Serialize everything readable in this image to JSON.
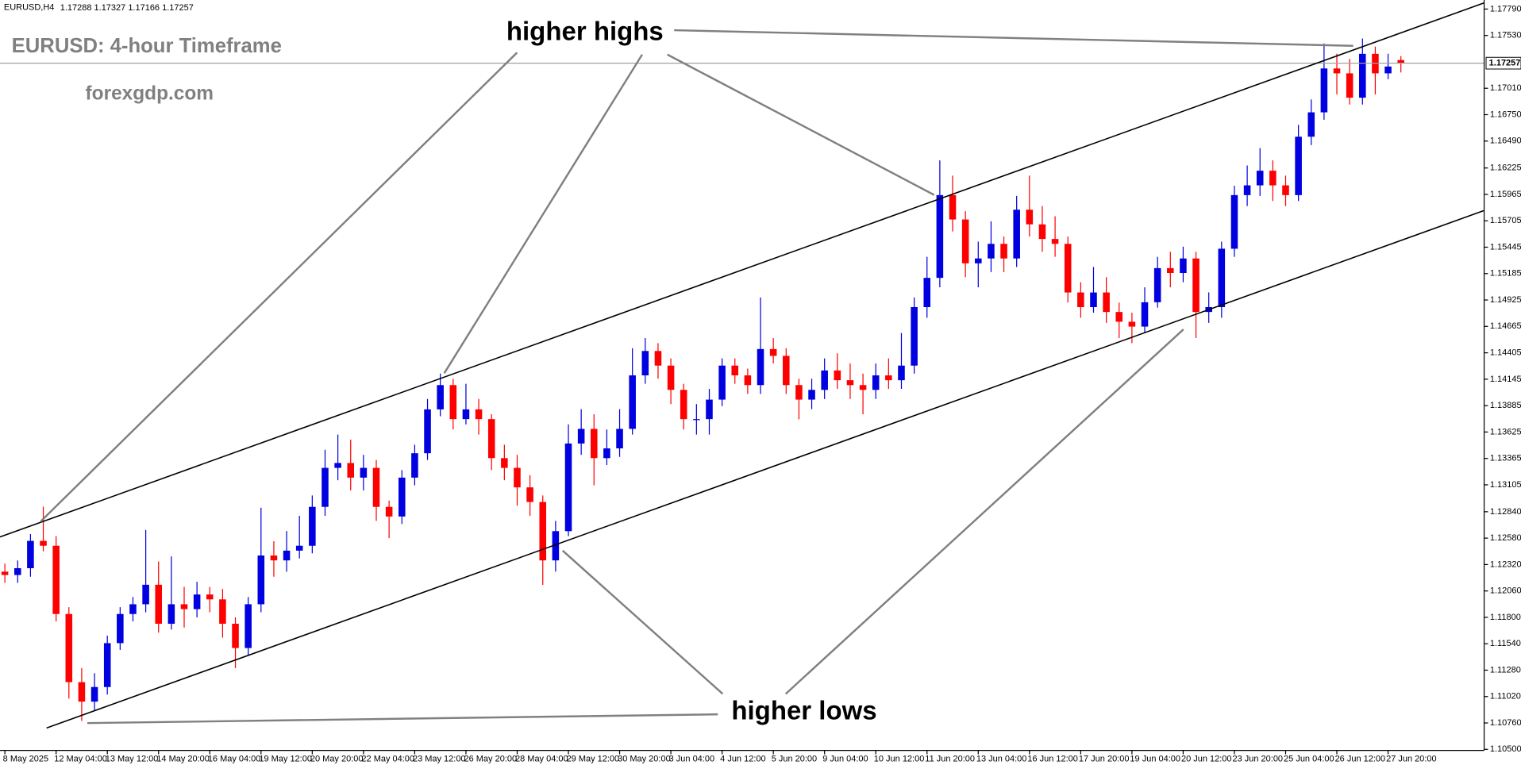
{
  "chart_data": {
    "type": "candlestick",
    "title": "EURUSD: 4-hour Timeframe",
    "subtitle": "forexgdp.com",
    "symbol": "EURUSD,H4",
    "annotations": [
      "higher highs",
      "higher lows"
    ],
    "up_color": "#0000e0",
    "down_color": "#ff0000",
    "open": [
      1.1225,
      1.12217,
      1.12284,
      1.12553,
      1.12505,
      1.11833,
      1.11162,
      1.1097,
      1.11114,
      1.11546,
      1.11833,
      1.11929,
      1.12121,
      1.11737,
      1.11929,
      1.11881,
      1.12025,
      1.11977,
      1.11737,
      1.11498,
      1.11929,
      1.12409,
      1.12361,
      1.12457,
      1.12505,
      1.12888,
      1.13272,
      1.1332,
      1.13176,
      1.13272,
      1.12888,
      1.12793,
      1.13176,
      1.13416,
      1.13848,
      1.14087,
      1.13752,
      1.13848,
      1.13752,
      1.13368,
      1.13272,
      1.1308,
      1.12936,
      1.12361,
      1.12649,
      1.13512,
      1.13656,
      1.13368,
      1.13464,
      1.13656,
      1.14183,
      1.14423,
      1.14279,
      1.1404,
      1.13752,
      1.13752,
      1.13944,
      1.14279,
      1.14183,
      1.14087,
      1.14442,
      1.14375,
      1.14087,
      1.13944,
      1.1404,
      1.14231,
      1.14135,
      1.14087,
      1.1404,
      1.14183,
      1.14135,
      1.14279,
      1.14855,
      1.15143,
      1.15958,
      1.15718,
      1.15286,
      1.15334,
      1.15478,
      1.15334,
      1.15814,
      1.1567,
      1.15526,
      1.15478,
      1.14999,
      1.14855,
      1.14999,
      1.14807,
      1.14711,
      1.14663,
      1.14903,
      1.15239,
      1.15191,
      1.15334,
      1.14807,
      1.14855,
      1.1543,
      1.15958,
      1.16054,
      1.16198,
      1.16054,
      1.15958,
      1.16533,
      1.16773,
      1.17205,
      1.17157,
      1.16917,
      1.17349,
      1.17157,
      1.17288
    ],
    "high": [
      1.1233,
      1.1236,
      1.1262,
      1.1289,
      1.126,
      1.119,
      1.113,
      1.1125,
      1.1162,
      1.119,
      1.12,
      1.1266,
      1.1235,
      1.124,
      1.121,
      1.1215,
      1.121,
      1.1208,
      1.118,
      1.12,
      1.1288,
      1.1255,
      1.1265,
      1.128,
      1.13,
      1.1345,
      1.136,
      1.1355,
      1.134,
      1.1335,
      1.1295,
      1.1325,
      1.135,
      1.1395,
      1.142,
      1.1415,
      1.141,
      1.1395,
      1.138,
      1.135,
      1.134,
      1.132,
      1.13,
      1.1275,
      1.137,
      1.1385,
      1.138,
      1.1365,
      1.1385,
      1.1445,
      1.1455,
      1.145,
      1.1435,
      1.141,
      1.139,
      1.1405,
      1.1435,
      1.1435,
      1.1425,
      1.1495,
      1.1455,
      1.1445,
      1.1415,
      1.1415,
      1.1435,
      1.144,
      1.143,
      1.142,
      1.143,
      1.1435,
      1.146,
      1.1495,
      1.1535,
      1.163,
      1.1615,
      1.158,
      1.155,
      1.157,
      1.1555,
      1.1595,
      1.1615,
      1.1585,
      1.1575,
      1.1555,
      1.151,
      1.1525,
      1.1515,
      1.149,
      1.148,
      1.1505,
      1.1535,
      1.154,
      1.1545,
      1.154,
      1.15,
      1.155,
      1.1605,
      1.1625,
      1.1642,
      1.163,
      1.1615,
      1.1665,
      1.169,
      1.1745,
      1.1735,
      1.173,
      1.175,
      1.1742,
      1.1735,
      1.17327
    ],
    "low": [
      1.1214,
      1.1214,
      1.122,
      1.1245,
      1.1176,
      1.11,
      1.1078,
      1.1088,
      1.1104,
      1.1148,
      1.1176,
      1.1185,
      1.1165,
      1.1168,
      1.117,
      1.118,
      1.1185,
      1.116,
      1.113,
      1.1142,
      1.1185,
      1.122,
      1.1225,
      1.1238,
      1.1243,
      1.128,
      1.1315,
      1.1305,
      1.1305,
      1.1275,
      1.1258,
      1.1272,
      1.131,
      1.1335,
      1.1378,
      1.1365,
      1.137,
      1.136,
      1.1325,
      1.1315,
      1.129,
      1.128,
      1.1212,
      1.1225,
      1.126,
      1.134,
      1.131,
      1.133,
      1.1338,
      1.136,
      1.141,
      1.1415,
      1.139,
      1.1365,
      1.136,
      1.136,
      1.1388,
      1.141,
      1.14,
      1.14,
      1.143,
      1.14,
      1.1375,
      1.1385,
      1.1395,
      1.1405,
      1.1395,
      1.138,
      1.1395,
      1.1405,
      1.1405,
      1.142,
      1.1475,
      1.1505,
      1.156,
      1.1515,
      1.1505,
      1.152,
      1.152,
      1.1525,
      1.1555,
      1.154,
      1.1535,
      1.149,
      1.1475,
      1.148,
      1.147,
      1.1455,
      1.145,
      1.146,
      1.1485,
      1.1505,
      1.151,
      1.1455,
      1.147,
      1.1475,
      1.1535,
      1.1585,
      1.1595,
      1.159,
      1.1585,
      1.159,
      1.1645,
      1.167,
      1.1695,
      1.1685,
      1.1685,
      1.1695,
      1.171,
      1.17166
    ],
    "close": [
      1.12217,
      1.12284,
      1.12553,
      1.12505,
      1.11833,
      1.11162,
      1.1097,
      1.11114,
      1.11546,
      1.11833,
      1.11929,
      1.12121,
      1.11737,
      1.11929,
      1.11881,
      1.12025,
      1.11977,
      1.11737,
      1.11498,
      1.11929,
      1.12409,
      1.12361,
      1.12457,
      1.12505,
      1.12888,
      1.13272,
      1.1332,
      1.13176,
      1.13272,
      1.12888,
      1.12793,
      1.13176,
      1.13416,
      1.13848,
      1.14087,
      1.13752,
      1.13848,
      1.13752,
      1.13368,
      1.13272,
      1.1308,
      1.12936,
      1.12361,
      1.12649,
      1.13512,
      1.13656,
      1.13368,
      1.13464,
      1.13656,
      1.14183,
      1.14423,
      1.14279,
      1.1404,
      1.13752,
      1.13752,
      1.13944,
      1.14279,
      1.14183,
      1.14087,
      1.14442,
      1.14375,
      1.14087,
      1.13944,
      1.1404,
      1.14231,
      1.14135,
      1.14087,
      1.1404,
      1.14183,
      1.14135,
      1.14279,
      1.14855,
      1.15143,
      1.15958,
      1.15718,
      1.15286,
      1.15334,
      1.15478,
      1.15334,
      1.15814,
      1.1567,
      1.15526,
      1.15478,
      1.14999,
      1.14855,
      1.14999,
      1.14807,
      1.14711,
      1.14663,
      1.14903,
      1.15239,
      1.15191,
      1.15334,
      1.14807,
      1.14855,
      1.1543,
      1.15958,
      1.16054,
      1.16198,
      1.16054,
      1.15958,
      1.16533,
      1.16773,
      1.17205,
      1.17157,
      1.16917,
      1.17349,
      1.17157,
      1.17224,
      1.17257
    ],
    "xlim": [
      -0.38,
      115.5
    ],
    "ylim": [
      1.1049,
      1.1786
    ],
    "xticks": [
      {
        "value": 0,
        "label": "8 May 2025"
      },
      {
        "value": 4,
        "label": "12 May 04:00"
      },
      {
        "value": 8,
        "label": "13 May 12:00"
      },
      {
        "value": 12,
        "label": "14 May 20:00"
      },
      {
        "value": 16,
        "label": "16 May 04:00"
      },
      {
        "value": 20,
        "label": "19 May 12:00"
      },
      {
        "value": 24,
        "label": "20 May 20:00"
      },
      {
        "value": 28,
        "label": "22 May 04:00"
      },
      {
        "value": 32,
        "label": "23 May 12:00"
      },
      {
        "value": 36,
        "label": "26 May 20:00"
      },
      {
        "value": 40,
        "label": "28 May 04:00"
      },
      {
        "value": 44,
        "label": "29 May 12:00"
      },
      {
        "value": 48,
        "label": "30 May 20:00"
      },
      {
        "value": 52,
        "label": "3 Jun 04:00"
      },
      {
        "value": 56,
        "label": "4 Jun 12:00"
      },
      {
        "value": 60,
        "label": "5 Jun 20:00"
      },
      {
        "value": 64,
        "label": "9 Jun 04:00"
      },
      {
        "value": 68,
        "label": "10 Jun 12:00"
      },
      {
        "value": 72,
        "label": "11 Jun 20:00"
      },
      {
        "value": 76,
        "label": "13 Jun 04:00"
      },
      {
        "value": 80,
        "label": "16 Jun 12:00"
      },
      {
        "value": 84,
        "label": "17 Jun 20:00"
      },
      {
        "value": 88,
        "label": "19 Jun 04:00"
      },
      {
        "value": 92,
        "label": "20 Jun 12:00"
      },
      {
        "value": 96,
        "label": "23 Jun 20:00"
      },
      {
        "value": 100,
        "label": "25 Jun 04:00"
      },
      {
        "value": 104,
        "label": "26 Jun 12:00"
      },
      {
        "value": 108,
        "label": "27 Jun 20:00"
      }
    ],
    "yticks": [
      {
        "value": 1.1779,
        "label": "1.17790"
      },
      {
        "value": 1.1753,
        "label": "1.17530"
      },
      {
        "value": 1.1701,
        "label": "1.17010"
      },
      {
        "value": 1.1675,
        "label": "1.16750"
      },
      {
        "value": 1.1649,
        "label": "1.16490"
      },
      1.16225,
      1.15965,
      1.15705,
      1.15445,
      1.15185,
      1.14925,
      1.14665,
      1.14405,
      1.14145,
      1.13885,
      1.13625,
      1.13365,
      1.13105,
      {
        "value": 1.1284,
        "label": "1.12840"
      },
      {
        "value": 1.1258,
        "label": "1.12580"
      },
      {
        "value": 1.1232,
        "label": "1.12320"
      },
      {
        "value": 1.1206,
        "label": "1.12060"
      },
      {
        "value": 1.118,
        "label": "1.11800"
      },
      {
        "value": 1.1154,
        "label": "1.11540"
      },
      {
        "value": 1.1128,
        "label": "1.11280"
      },
      {
        "value": 1.1102,
        "label": "1.11020"
      },
      {
        "value": 1.1076,
        "label": "1.10760"
      },
      {
        "value": 1.105,
        "label": "1.10500"
      }
    ]
  }
}
